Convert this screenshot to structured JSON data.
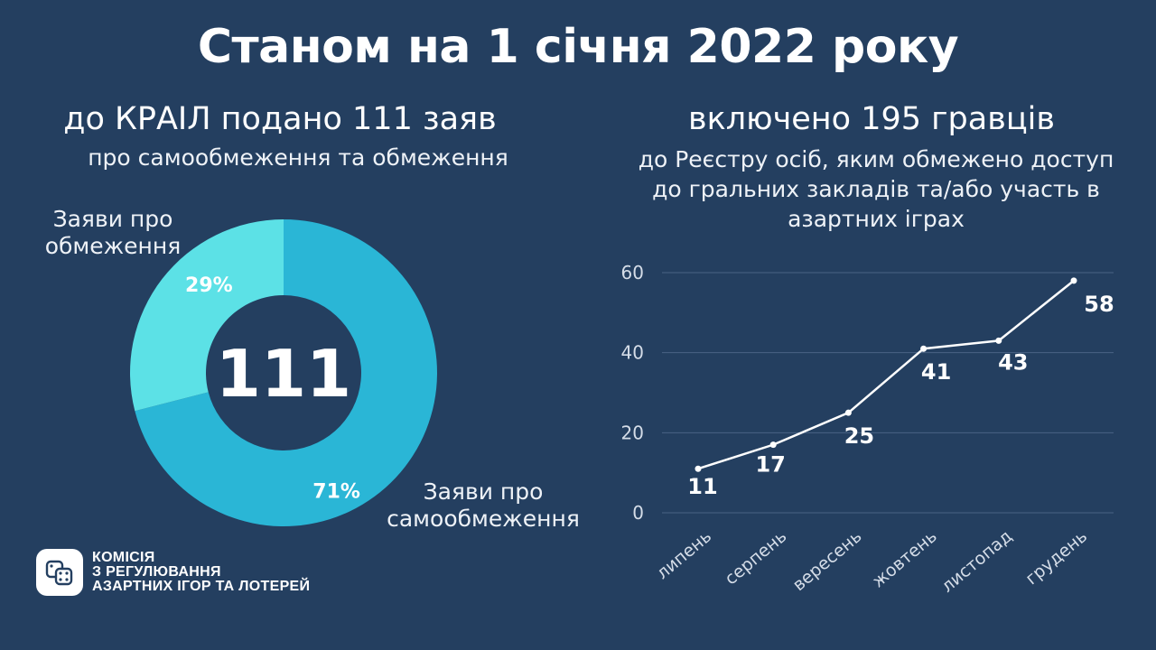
{
  "title": "Станом на 1 січня 2022 року",
  "left": {
    "headline": "до КРАІЛ подано 111 заяв",
    "subline": "про самообмеження та обмеження"
  },
  "right": {
    "headline": "включено 195 гравців",
    "sub_lines": [
      "до Реєстру осіб, яким обмежено доступ",
      "до гральних закладів та/або участь в",
      "азартних іграх"
    ]
  },
  "logo": {
    "icon": "dice-icon",
    "lines": [
      "КОМІСІЯ",
      "З РЕГУЛЮВАННЯ",
      "АЗАРТНИХ ІГОР ТА ЛОТЕРЕЙ"
    ]
  },
  "chart_data": [
    {
      "type": "pie",
      "variant": "donut",
      "center_label": "111",
      "slices": [
        {
          "label_lines": [
            "Заяви про",
            "самообмеження"
          ],
          "value": 71,
          "value_label": "71%",
          "color": "#2ab6d6"
        },
        {
          "label_lines": [
            "Заяви про",
            "обмеження"
          ],
          "value": 29,
          "value_label": "29%",
          "color": "#5ce1e6"
        }
      ]
    },
    {
      "type": "line",
      "categories": [
        "липень",
        "серпень",
        "вересень",
        "жовтень",
        "листопад",
        "грудень"
      ],
      "values": [
        11,
        17,
        25,
        41,
        43,
        58
      ],
      "data_labels": [
        "11",
        "17",
        "25",
        "41",
        "43",
        "58"
      ],
      "ylim": [
        0,
        60
      ],
      "yticks": [
        "0",
        "20",
        "40",
        "60"
      ],
      "grid": true,
      "line_color": "#ffffff"
    }
  ]
}
